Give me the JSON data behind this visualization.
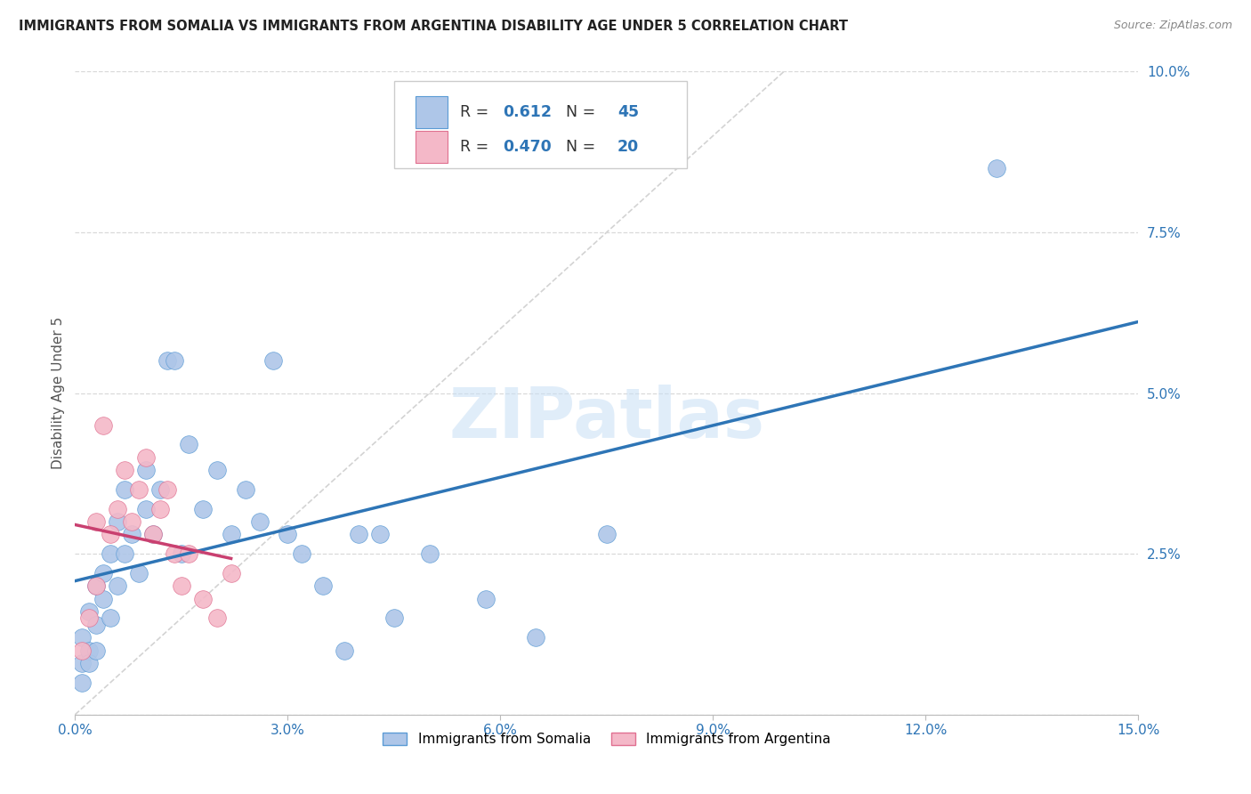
{
  "title": "IMMIGRANTS FROM SOMALIA VS IMMIGRANTS FROM ARGENTINA DISABILITY AGE UNDER 5 CORRELATION CHART",
  "source": "Source: ZipAtlas.com",
  "ylabel": "Disability Age Under 5",
  "xlim": [
    0,
    0.15
  ],
  "ylim": [
    0,
    0.1
  ],
  "xtick_vals": [
    0.0,
    0.03,
    0.06,
    0.09,
    0.12,
    0.15
  ],
  "xtick_labels": [
    "0.0%",
    "3.0%",
    "6.0%",
    "9.0%",
    "12.0%",
    "15.0%"
  ],
  "ytick_vals": [
    0.0,
    0.025,
    0.05,
    0.075,
    0.1
  ],
  "ytick_labels": [
    "",
    "2.5%",
    "5.0%",
    "7.5%",
    "10.0%"
  ],
  "somalia_color": "#aec6e8",
  "somalia_edge": "#5b9bd5",
  "argentina_color": "#f4b8c8",
  "argentina_edge": "#e07090",
  "somalia_line_color": "#2e75b6",
  "argentina_line_color": "#c94070",
  "diagonal_color": "#c8c8c8",
  "grid_color": "#d9d9d9",
  "R_somalia": "0.612",
  "N_somalia": "45",
  "R_argentina": "0.470",
  "N_argentina": "20",
  "watermark": "ZIPatlas",
  "legend_text_color": "#333333",
  "value_color": "#2e75b6",
  "tick_color": "#2e75b6",
  "somalia_x": [
    0.001,
    0.001,
    0.001,
    0.002,
    0.002,
    0.002,
    0.003,
    0.003,
    0.003,
    0.004,
    0.004,
    0.005,
    0.005,
    0.006,
    0.006,
    0.007,
    0.007,
    0.008,
    0.009,
    0.01,
    0.01,
    0.011,
    0.012,
    0.013,
    0.014,
    0.015,
    0.016,
    0.018,
    0.02,
    0.022,
    0.024,
    0.026,
    0.028,
    0.03,
    0.032,
    0.035,
    0.038,
    0.04,
    0.043,
    0.045,
    0.05,
    0.058,
    0.065,
    0.075,
    0.13
  ],
  "somalia_y": [
    0.008,
    0.012,
    0.005,
    0.01,
    0.016,
    0.008,
    0.014,
    0.02,
    0.01,
    0.018,
    0.022,
    0.015,
    0.025,
    0.02,
    0.03,
    0.025,
    0.035,
    0.028,
    0.022,
    0.032,
    0.038,
    0.028,
    0.035,
    0.055,
    0.055,
    0.025,
    0.042,
    0.032,
    0.038,
    0.028,
    0.035,
    0.03,
    0.055,
    0.028,
    0.025,
    0.02,
    0.01,
    0.028,
    0.028,
    0.015,
    0.025,
    0.018,
    0.012,
    0.028,
    0.085
  ],
  "argentina_x": [
    0.001,
    0.002,
    0.003,
    0.003,
    0.004,
    0.005,
    0.006,
    0.007,
    0.008,
    0.009,
    0.01,
    0.011,
    0.012,
    0.013,
    0.014,
    0.015,
    0.016,
    0.018,
    0.02,
    0.022
  ],
  "argentina_y": [
    0.01,
    0.015,
    0.02,
    0.03,
    0.045,
    0.028,
    0.032,
    0.038,
    0.03,
    0.035,
    0.04,
    0.028,
    0.032,
    0.035,
    0.025,
    0.02,
    0.025,
    0.018,
    0.015,
    0.022
  ]
}
